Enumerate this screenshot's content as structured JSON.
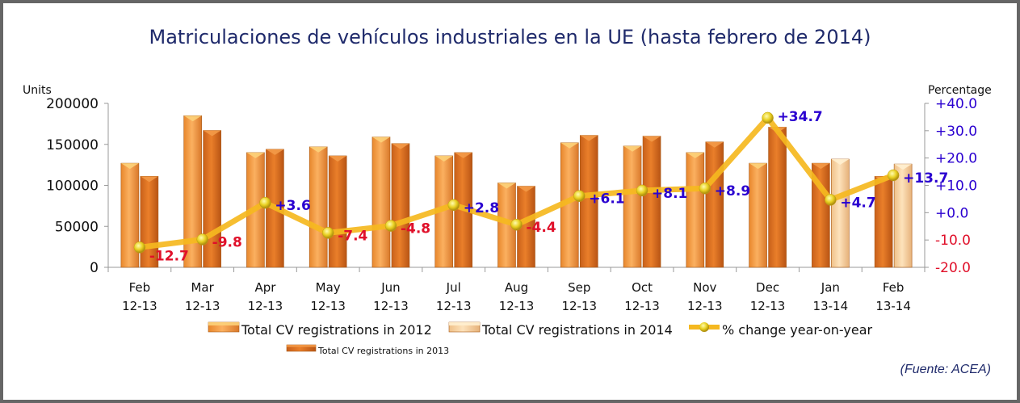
{
  "title": "Matriculaciones de vehículos industriales en la UE (hasta febrero de 2014)",
  "source": "(Fuente: ACEA)",
  "colors": {
    "bar_2012": "#f59a3c",
    "bar_2013": "#e07020",
    "bar_2014": "#f8cf98",
    "line": "#f5b820",
    "marker": "#e8d020",
    "positive_label": "#2a00d0",
    "negative_label": "#e0102a",
    "title": "#1f2a6b"
  },
  "chart_data": {
    "type": "bar",
    "title": "Matriculaciones de vehículos industriales en la UE (hasta febrero de 2014)",
    "ylabel": "Units",
    "y2label": "Percentage",
    "ylim": [
      0,
      200000
    ],
    "y2lim": [
      -20,
      40
    ],
    "yticks": [
      "0",
      "50000",
      "100000",
      "150000",
      "200000"
    ],
    "y2ticks": [
      {
        "value": -20,
        "label": "-20.0"
      },
      {
        "value": -10,
        "label": "-10.0"
      },
      {
        "value": 0,
        "label": "+0.0"
      },
      {
        "value": 10,
        "label": "+10.0"
      },
      {
        "value": 20,
        "label": "+20.0"
      },
      {
        "value": 30,
        "label": "+30.0"
      },
      {
        "value": 40,
        "label": "+40.0"
      }
    ],
    "categories": [
      {
        "month": "Feb",
        "period": "12-13"
      },
      {
        "month": "Mar",
        "period": "12-13"
      },
      {
        "month": "Apr",
        "period": "12-13"
      },
      {
        "month": "May",
        "period": "12-13"
      },
      {
        "month": "Jun",
        "period": "12-13"
      },
      {
        "month": "Jul",
        "period": "12-13"
      },
      {
        "month": "Aug",
        "period": "12-13"
      },
      {
        "month": "Sep",
        "period": "12-13"
      },
      {
        "month": "Oct",
        "period": "12-13"
      },
      {
        "month": "Nov",
        "period": "12-13"
      },
      {
        "month": "Dec",
        "period": "12-13"
      },
      {
        "month": "Jan",
        "period": "13-14"
      },
      {
        "month": "Feb",
        "period": "13-14"
      }
    ],
    "bars": [
      {
        "first": {
          "series": "2012",
          "value": 127000
        },
        "second": {
          "series": "2013",
          "value": 111000
        }
      },
      {
        "first": {
          "series": "2012",
          "value": 185000
        },
        "second": {
          "series": "2013",
          "value": 167000
        }
      },
      {
        "first": {
          "series": "2012",
          "value": 140000
        },
        "second": {
          "series": "2013",
          "value": 144000
        }
      },
      {
        "first": {
          "series": "2012",
          "value": 147000
        },
        "second": {
          "series": "2013",
          "value": 136000
        }
      },
      {
        "first": {
          "series": "2012",
          "value": 159000
        },
        "second": {
          "series": "2013",
          "value": 151000
        }
      },
      {
        "first": {
          "series": "2012",
          "value": 136000
        },
        "second": {
          "series": "2013",
          "value": 140000
        }
      },
      {
        "first": {
          "series": "2012",
          "value": 103000
        },
        "second": {
          "series": "2013",
          "value": 99000
        }
      },
      {
        "first": {
          "series": "2012",
          "value": 152000
        },
        "second": {
          "series": "2013",
          "value": 161000
        }
      },
      {
        "first": {
          "series": "2012",
          "value": 148000
        },
        "second": {
          "series": "2013",
          "value": 160000
        }
      },
      {
        "first": {
          "series": "2012",
          "value": 140000
        },
        "second": {
          "series": "2013",
          "value": 153000
        }
      },
      {
        "first": {
          "series": "2012",
          "value": 127000
        },
        "second": {
          "series": "2013",
          "value": 171000
        }
      },
      {
        "first": {
          "series": "2013",
          "value": 127000
        },
        "second": {
          "series": "2014",
          "value": 132000
        }
      },
      {
        "first": {
          "series": "2013",
          "value": 111000
        },
        "second": {
          "series": "2014",
          "value": 126000
        }
      }
    ],
    "pct_change": [
      -12.7,
      -9.8,
      3.6,
      -7.4,
      -4.8,
      2.8,
      -4.4,
      6.1,
      8.1,
      8.9,
      34.7,
      4.7,
      13.7
    ],
    "pct_labels": [
      "-12.7",
      "-9.8",
      "+3.6",
      "-7.4",
      "-4.8",
      "+2.8",
      "-4.4",
      "+6.1",
      "+8.1",
      "+8.9",
      "+34.7",
      "+4.7",
      "+13.7"
    ],
    "legend": [
      {
        "key": "2012",
        "label": "Total CV registrations in 2012"
      },
      {
        "key": "2014",
        "label": "Total CV registrations in 2014"
      },
      {
        "key": "pct",
        "label": "% change year-on-year"
      },
      {
        "key": "2013",
        "label": "Total CV registrations in 2013"
      }
    ],
    "legend_position": "bottom",
    "grid": false
  }
}
